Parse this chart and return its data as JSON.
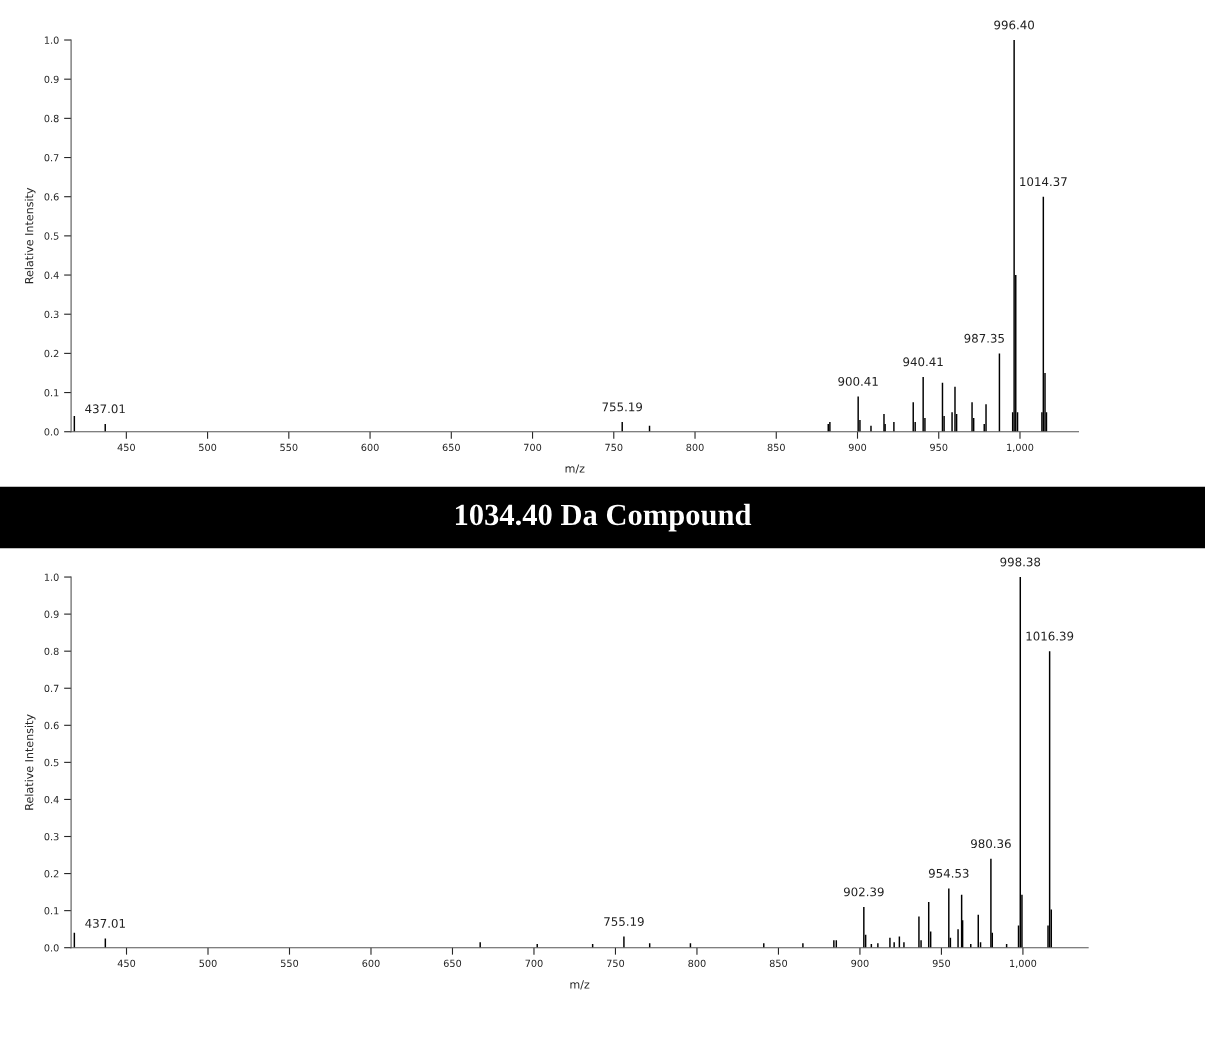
{
  "chart_data": [
    {
      "type": "bar",
      "color": "#000000",
      "xlabel": "m/z",
      "ylabel": "Relative Intensity",
      "x": [
        418,
        437.01,
        755.19,
        772,
        882,
        883,
        900.41,
        901.5,
        908.3,
        916.3,
        917,
        922.4,
        934.3,
        935.5,
        940.41,
        941.5,
        952.3,
        953.3,
        958.2,
        960.0,
        961,
        970.5,
        971.5,
        978,
        979.1,
        987.35,
        995.5,
        996.4,
        997.4,
        998.5,
        1013.5,
        1014.37,
        1015.4,
        1016.3
      ],
      "values": [
        0.04,
        0.02,
        0.025,
        0.015,
        0.02,
        0.025,
        0.09,
        0.03,
        0.015,
        0.045,
        0.02,
        0.025,
        0.075,
        0.025,
        0.14,
        0.035,
        0.125,
        0.04,
        0.05,
        0.115,
        0.045,
        0.075,
        0.035,
        0.02,
        0.07,
        0.2,
        0.05,
        1.0,
        0.4,
        0.05,
        0.05,
        0.6,
        0.15,
        0.05
      ],
      "xlim": [
        416,
        1036
      ],
      "ylim": [
        0,
        1.0
      ],
      "xticks": [
        450,
        500,
        550,
        600,
        650,
        700,
        750,
        800,
        850,
        900,
        950,
        {
          "value": 1000,
          "label": "1,000"
        }
      ],
      "yticks": [
        {
          "value": 0,
          "label": "0.0"
        },
        {
          "value": 0.1,
          "label": "0.1"
        },
        {
          "value": 0.2,
          "label": "0.2"
        },
        {
          "value": 0.3,
          "label": "0.3"
        },
        {
          "value": 0.4,
          "label": "0.4"
        },
        {
          "value": 0.5,
          "label": "0.5"
        },
        {
          "value": 0.6,
          "label": "0.6"
        },
        {
          "value": 0.7,
          "label": "0.7"
        },
        {
          "value": 0.8,
          "label": "0.8"
        },
        {
          "value": 0.9,
          "label": "0.9"
        },
        {
          "value": 1.0,
          "label": "1.0"
        }
      ],
      "grid": false,
      "annotations": [
        {
          "text": "437.01",
          "x": 437.01,
          "y": 0.02
        },
        {
          "text": "755.19",
          "x": 755.19,
          "y": 0.025
        },
        {
          "text": "900.41",
          "x": 900.41,
          "y": 0.09
        },
        {
          "text": "940.41",
          "x": 940.41,
          "y": 0.14
        },
        {
          "text": "987.35",
          "x": 987.35,
          "y": 0.2
        },
        {
          "text": "996.40",
          "x": 996.4,
          "y": 1.0
        },
        {
          "text": "1014.37",
          "x": 1014.37,
          "y": 0.6
        }
      ]
    },
    {
      "type": "bar",
      "color": "#000000",
      "title": "1034.40 Da Compound",
      "xlabel": "m/z",
      "ylabel": "Relative Intensity",
      "x": [
        418,
        437.01,
        667,
        702,
        736,
        755.19,
        771,
        796,
        841,
        865,
        884,
        885.5,
        902.39,
        903.5,
        907,
        911,
        918.4,
        921,
        924.2,
        927,
        936.2,
        937.5,
        942.2,
        943.4,
        954.53,
        955.5,
        960.2,
        962.4,
        963,
        968,
        972.6,
        974,
        980.36,
        981.2,
        990,
        997.3,
        998.38,
        999.4,
        1015.4,
        1016.39,
        1017.4
      ],
      "values": [
        0.04,
        0.025,
        0.015,
        0.01,
        0.01,
        0.03,
        0.012,
        0.012,
        0.012,
        0.012,
        0.02,
        0.02,
        0.11,
        0.035,
        0.01,
        0.012,
        0.027,
        0.015,
        0.03,
        0.015,
        0.084,
        0.02,
        0.123,
        0.044,
        0.16,
        0.027,
        0.05,
        0.143,
        0.074,
        0.01,
        0.089,
        0.015,
        0.24,
        0.04,
        0.01,
        0.06,
        1.0,
        0.143,
        0.06,
        0.8,
        0.103
      ],
      "xlim": [
        416,
        1040
      ],
      "ylim": [
        0,
        1.0
      ],
      "xticks": [
        450,
        500,
        550,
        600,
        650,
        700,
        750,
        800,
        850,
        900,
        950,
        {
          "value": 1000,
          "label": "1,000"
        }
      ],
      "yticks": [
        {
          "value": 0,
          "label": "0.0"
        },
        {
          "value": 0.1,
          "label": "0.1"
        },
        {
          "value": 0.2,
          "label": "0.2"
        },
        {
          "value": 0.3,
          "label": "0.3"
        },
        {
          "value": 0.4,
          "label": "0.4"
        },
        {
          "value": 0.5,
          "label": "0.5"
        },
        {
          "value": 0.6,
          "label": "0.6"
        },
        {
          "value": 0.7,
          "label": "0.7"
        },
        {
          "value": 0.8,
          "label": "0.8"
        },
        {
          "value": 0.9,
          "label": "0.9"
        },
        {
          "value": 1.0,
          "label": "1.0"
        }
      ],
      "grid": false,
      "annotations": [
        {
          "text": "437.01",
          "x": 437.01,
          "y": 0.025
        },
        {
          "text": "755.19",
          "x": 755.19,
          "y": 0.03
        },
        {
          "text": "902.39",
          "x": 902.39,
          "y": 0.11
        },
        {
          "text": "954.53",
          "x": 954.53,
          "y": 0.16
        },
        {
          "text": "980.36",
          "x": 980.36,
          "y": 0.24
        },
        {
          "text": "998.38",
          "x": 998.38,
          "y": 1.0
        },
        {
          "text": "1016.39",
          "x": 1016.39,
          "y": 0.8
        }
      ]
    }
  ]
}
